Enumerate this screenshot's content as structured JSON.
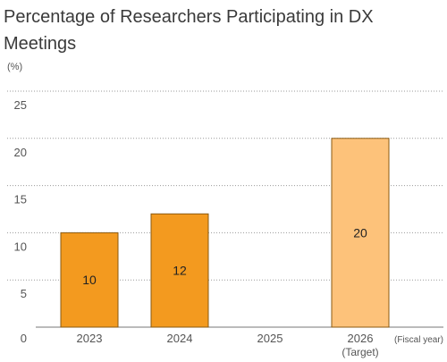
{
  "chart_data": {
    "type": "bar",
    "title": "Percentage of Researchers Participating in DX Meetings",
    "y_unit": "(%)",
    "x_unit": "(Fiscal year)",
    "ylim": [
      0,
      25
    ],
    "yticks": [
      0,
      5,
      10,
      15,
      20,
      25
    ],
    "grid": true,
    "categories": [
      "2023",
      "2024",
      "2025",
      "2026"
    ],
    "category_sublabels": [
      "",
      "",
      "",
      "(Target)"
    ],
    "values": [
      10,
      12,
      null,
      20
    ],
    "data_labels": [
      "10",
      "12",
      "",
      "20"
    ],
    "bar_colors": [
      "#F39A1F",
      "#F39A1F",
      "#F39A1F",
      "#FDC27A"
    ],
    "bar_border": "#8a5a12",
    "grid_color": "#9a9a9a"
  }
}
